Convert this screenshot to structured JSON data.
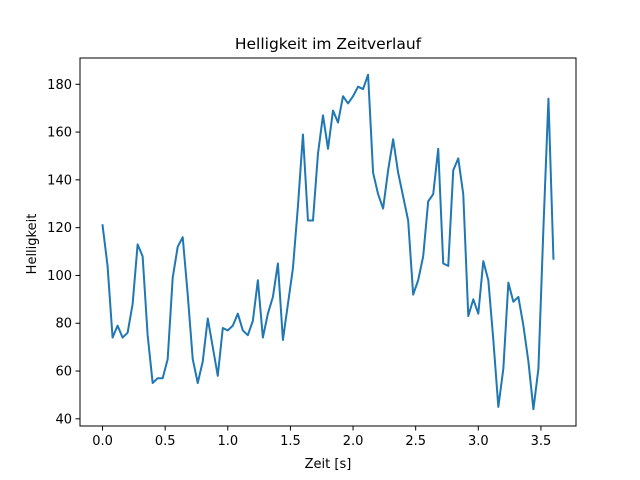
{
  "chart_data": {
    "type": "line",
    "title": "Helligkeit im Zeitverlauf",
    "xlabel": "Zeit [s]",
    "ylabel": "Helligkeit",
    "xlim": [
      -0.18,
      3.78
    ],
    "ylim": [
      37,
      191
    ],
    "xticks": [
      0.0,
      0.5,
      1.0,
      1.5,
      2.0,
      2.5,
      3.0,
      3.5
    ],
    "xtick_labels": [
      "0.0",
      "0.5",
      "1.0",
      "1.5",
      "2.0",
      "2.5",
      "3.0",
      "3.5"
    ],
    "yticks": [
      40,
      60,
      80,
      100,
      120,
      140,
      160,
      180
    ],
    "ytick_labels": [
      "40",
      "60",
      "80",
      "100",
      "120",
      "140",
      "160",
      "180"
    ],
    "grid": false,
    "series": [
      {
        "name": "Helligkeit",
        "color": "#1f77b4",
        "x": [
          0.0,
          0.04,
          0.08,
          0.12,
          0.16,
          0.2,
          0.24,
          0.28,
          0.32,
          0.36,
          0.4,
          0.44,
          0.48,
          0.52,
          0.56,
          0.6,
          0.64,
          0.68,
          0.72,
          0.76,
          0.8,
          0.84,
          0.88,
          0.92,
          0.96,
          1.0,
          1.04,
          1.08,
          1.12,
          1.16,
          1.2,
          1.24,
          1.28,
          1.32,
          1.36,
          1.4,
          1.44,
          1.48,
          1.52,
          1.56,
          1.6,
          1.64,
          1.68,
          1.72,
          1.76,
          1.8,
          1.84,
          1.88,
          1.92,
          1.96,
          2.0,
          2.04,
          2.08,
          2.12,
          2.16,
          2.2,
          2.24,
          2.28,
          2.32,
          2.36,
          2.4,
          2.44,
          2.48,
          2.52,
          2.56,
          2.6,
          2.64,
          2.68,
          2.72,
          2.76,
          2.8,
          2.84,
          2.88,
          2.92,
          2.96,
          3.0,
          3.04,
          3.08,
          3.12,
          3.16,
          3.2,
          3.24,
          3.28,
          3.32,
          3.36,
          3.4,
          3.44,
          3.48,
          3.52,
          3.56,
          3.6
        ],
        "values": [
          121,
          104,
          74,
          79,
          74,
          76,
          88,
          113,
          108,
          75,
          55,
          57,
          57,
          65,
          99,
          112,
          116,
          92,
          65,
          55,
          64,
          82,
          70,
          58,
          78,
          77,
          79,
          84,
          77,
          75,
          81,
          98,
          74,
          84,
          91,
          105,
          73,
          88,
          103,
          129,
          159,
          123,
          123,
          151,
          167,
          153,
          169,
          164,
          175,
          172,
          175,
          179,
          178,
          184,
          143,
          134,
          128,
          144,
          157,
          143,
          133,
          123,
          92,
          98,
          108,
          131,
          134,
          153,
          105,
          104,
          144,
          149,
          134,
          83,
          90,
          84,
          106,
          98,
          73,
          45,
          61,
          97,
          89,
          91,
          79,
          64,
          44,
          61,
          120,
          174,
          107
        ]
      }
    ]
  }
}
